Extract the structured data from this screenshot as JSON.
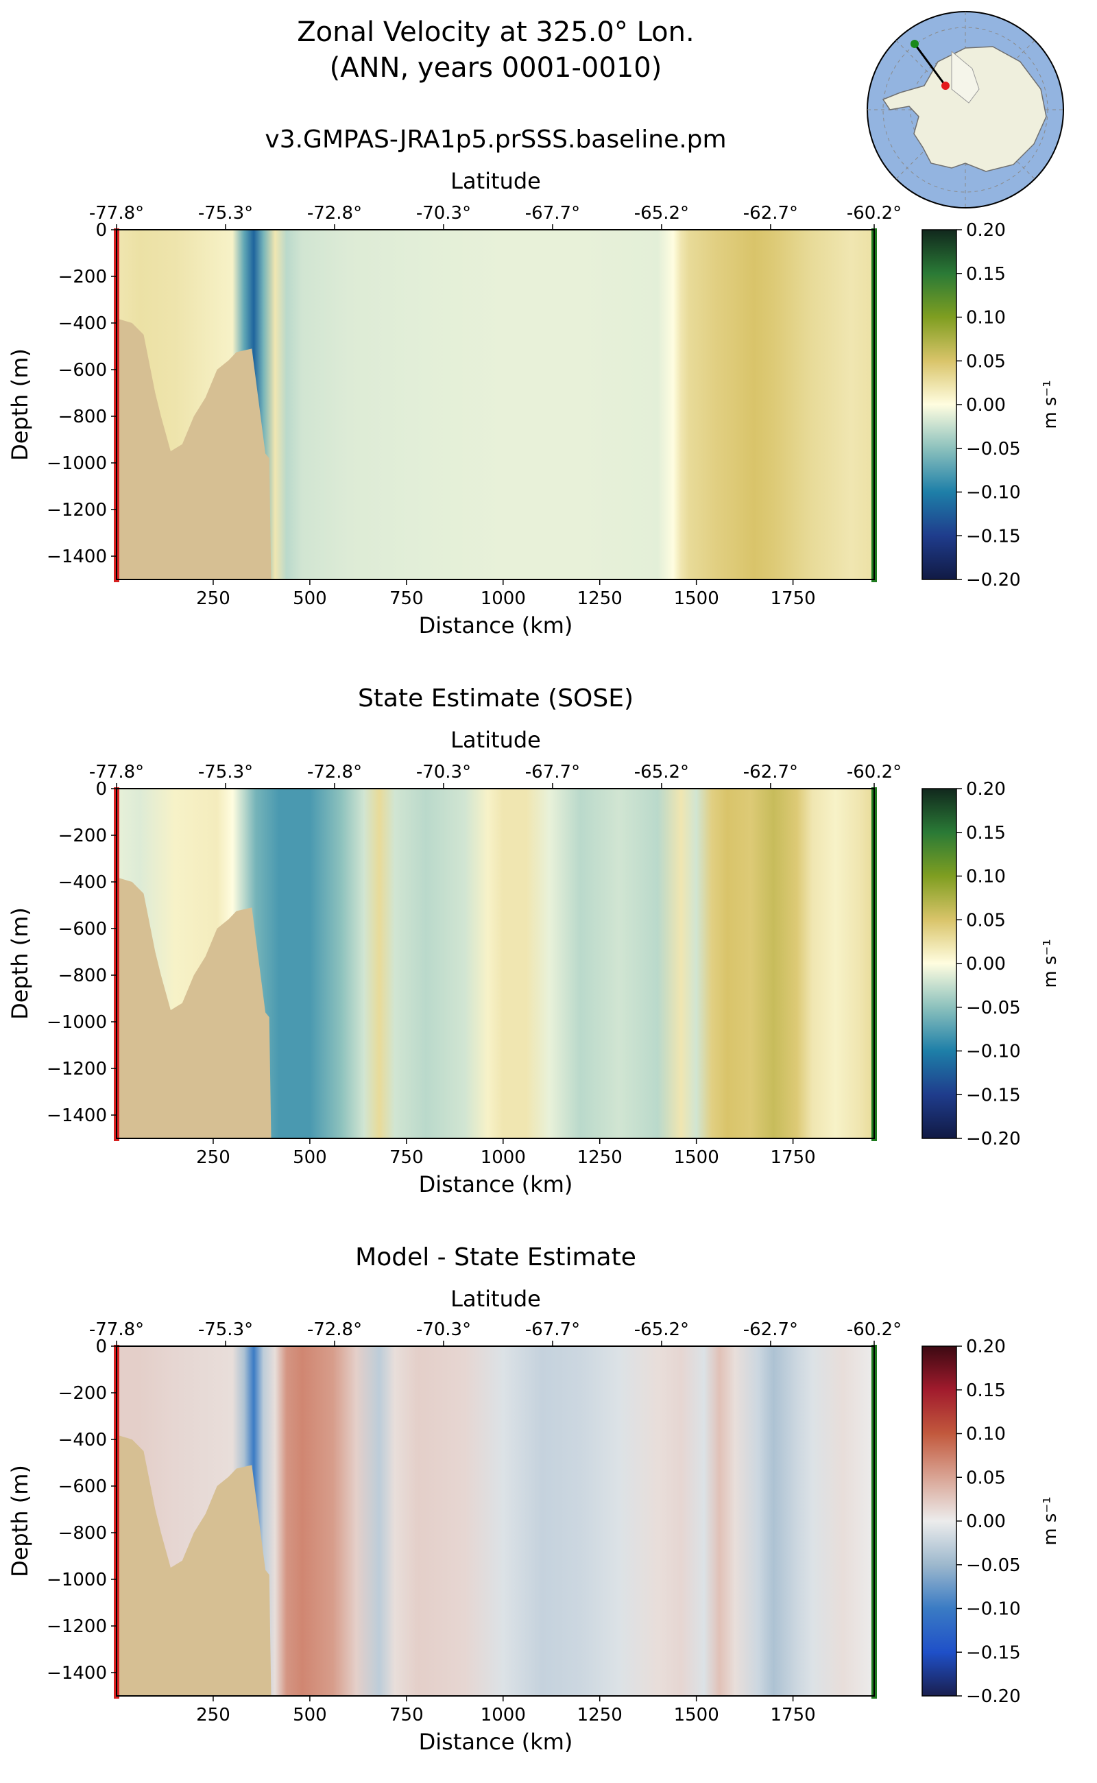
{
  "figure": {
    "title_line1": "Zonal Velocity at 325.0° Lon.",
    "title_line2": "(ANN, years 0001-0010)"
  },
  "inset_map": {
    "icon": "antarctica-polar-map-icon",
    "transect_start_color": "#e31a1c",
    "transect_end_color": "#1a8a1a",
    "ocean_color": "#93b4e0",
    "land_color": "#efefdd"
  },
  "colors": {
    "bathymetry": "#d6bf93",
    "start_marker": "#d62020",
    "end_marker": "#1e7a1e"
  },
  "chart_data": [
    {
      "type": "heatmap",
      "title": "v3.GMPAS-JRA1p5.prSSS.baseline.pm",
      "xlabel": "Distance (km)",
      "ylabel": "Depth (m)",
      "top_xlabel": "Latitude",
      "xlim": [
        0,
        1960
      ],
      "ylim": [
        -1500,
        0
      ],
      "xticks": [
        "250",
        "500",
        "750",
        "1000",
        "1250",
        "1500",
        "1750"
      ],
      "xtick_values": [
        250,
        500,
        750,
        1000,
        1250,
        1500,
        1750
      ],
      "yticks": [
        "0",
        "−200",
        "−400",
        "−600",
        "−800",
        "−1000",
        "−1200",
        "−1400"
      ],
      "ytick_values": [
        0,
        -200,
        -400,
        -600,
        -800,
        -1000,
        -1200,
        -1400
      ],
      "lat_ticks": [
        "-77.8°",
        "-75.3°",
        "-72.8°",
        "-70.3°",
        "-67.7°",
        "-65.2°",
        "-62.7°",
        "-60.2°"
      ],
      "lat_tick_positions_km": [
        0,
        282,
        564,
        846,
        1128,
        1410,
        1692,
        1960
      ],
      "colorbar": {
        "label": "m s⁻¹",
        "ticks": [
          "0.20",
          "0.15",
          "0.10",
          "0.05",
          "0.00",
          "−0.05",
          "−0.10",
          "−0.15",
          "−0.20"
        ],
        "range": [
          -0.2,
          0.2
        ],
        "colormap": "delta"
      },
      "velocity_columns": {
        "distance_km": [
          0,
          60,
          150,
          300,
          330,
          355,
          380,
          410,
          440,
          480,
          600,
          800,
          1000,
          1200,
          1400,
          1440,
          1460,
          1480,
          1550,
          1650,
          1700,
          1800,
          1900,
          1960
        ],
        "value_m_s": [
          0.02,
          0.025,
          0.022,
          0.01,
          -0.07,
          -0.12,
          -0.06,
          0.02,
          -0.03,
          -0.02,
          -0.015,
          -0.012,
          -0.01,
          -0.01,
          -0.012,
          0.0,
          0.02,
          0.03,
          0.04,
          0.05,
          0.045,
          0.03,
          0.02,
          0.025
        ]
      }
    },
    {
      "type": "heatmap",
      "title": "State Estimate (SOSE)",
      "xlabel": "Distance (km)",
      "ylabel": "Depth (m)",
      "top_xlabel": "Latitude",
      "xlim": [
        0,
        1960
      ],
      "ylim": [
        -1500,
        0
      ],
      "xticks": [
        "250",
        "500",
        "750",
        "1000",
        "1250",
        "1500",
        "1750"
      ],
      "xtick_values": [
        250,
        500,
        750,
        1000,
        1250,
        1500,
        1750
      ],
      "yticks": [
        "0",
        "−200",
        "−400",
        "−600",
        "−800",
        "−1000",
        "−1200",
        "−1400"
      ],
      "ytick_values": [
        0,
        -200,
        -400,
        -600,
        -800,
        -1000,
        -1200,
        -1400
      ],
      "lat_ticks": [
        "-77.8°",
        "-75.3°",
        "-72.8°",
        "-70.3°",
        "-67.7°",
        "-65.2°",
        "-62.7°",
        "-60.2°"
      ],
      "lat_tick_positions_km": [
        0,
        282,
        564,
        846,
        1128,
        1410,
        1692,
        1960
      ],
      "colorbar": {
        "label": "m s⁻¹",
        "ticks": [
          "0.20",
          "0.15",
          "0.10",
          "0.05",
          "0.00",
          "−0.05",
          "−0.10",
          "−0.15",
          "−0.20"
        ],
        "range": [
          -0.2,
          0.2
        ],
        "colormap": "delta"
      },
      "velocity_columns": {
        "distance_km": [
          0,
          60,
          150,
          260,
          300,
          360,
          420,
          500,
          580,
          640,
          680,
          720,
          800,
          900,
          960,
          1000,
          1060,
          1120,
          1200,
          1300,
          1400,
          1460,
          1500,
          1540,
          1580,
          1640,
          1700,
          1760,
          1800,
          1860,
          1920,
          1960
        ],
        "value_m_s": [
          -0.01,
          -0.015,
          0.01,
          0.015,
          0.0,
          -0.06,
          -0.08,
          -0.08,
          -0.05,
          -0.02,
          0.03,
          -0.02,
          -0.03,
          -0.02,
          0.01,
          0.02,
          0.02,
          -0.01,
          -0.03,
          -0.02,
          -0.03,
          0.02,
          -0.02,
          0.04,
          0.05,
          0.045,
          0.06,
          0.045,
          0.02,
          0.01,
          0.02,
          0.03
        ]
      }
    },
    {
      "type": "heatmap",
      "title": "Model - State Estimate",
      "xlabel": "Distance (km)",
      "ylabel": "Depth (m)",
      "top_xlabel": "Latitude",
      "xlim": [
        0,
        1960
      ],
      "ylim": [
        -1500,
        0
      ],
      "xticks": [
        "250",
        "500",
        "750",
        "1000",
        "1250",
        "1500",
        "1750"
      ],
      "xtick_values": [
        250,
        500,
        750,
        1000,
        1250,
        1500,
        1750
      ],
      "yticks": [
        "0",
        "−200",
        "−400",
        "−600",
        "−800",
        "−1000",
        "−1200",
        "−1400"
      ],
      "ytick_values": [
        0,
        -200,
        -400,
        -600,
        -800,
        -1000,
        -1200,
        -1400
      ],
      "lat_ticks": [
        "-77.8°",
        "-75.3°",
        "-72.8°",
        "-70.3°",
        "-67.7°",
        "-65.2°",
        "-62.7°",
        "-60.2°"
      ],
      "lat_tick_positions_km": [
        0,
        282,
        564,
        846,
        1128,
        1410,
        1692,
        1960
      ],
      "colorbar": {
        "label": "m s⁻¹",
        "ticks": [
          "0.20",
          "0.15",
          "0.10",
          "0.05",
          "0.00",
          "−0.05",
          "−0.10",
          "−0.15",
          "−0.20"
        ],
        "range": [
          -0.2,
          0.2
        ],
        "colormap": "balance"
      },
      "velocity_columns": {
        "distance_km": [
          0,
          60,
          150,
          300,
          330,
          355,
          380,
          410,
          440,
          480,
          560,
          620,
          680,
          720,
          780,
          900,
          1000,
          1100,
          1200,
          1300,
          1400,
          1460,
          1520,
          1560,
          1600,
          1660,
          1700,
          1760,
          1800,
          1880,
          1960
        ],
        "value_m_s": [
          0.02,
          0.02,
          0.015,
          0.01,
          -0.04,
          -0.1,
          -0.03,
          0.01,
          0.06,
          0.07,
          0.055,
          0.02,
          -0.03,
          0.01,
          0.02,
          0.015,
          -0.01,
          -0.025,
          -0.02,
          -0.01,
          0.01,
          0.015,
          -0.01,
          0.03,
          0.01,
          -0.02,
          -0.04,
          -0.02,
          -0.01,
          0.01,
          0.0
        ]
      }
    }
  ]
}
